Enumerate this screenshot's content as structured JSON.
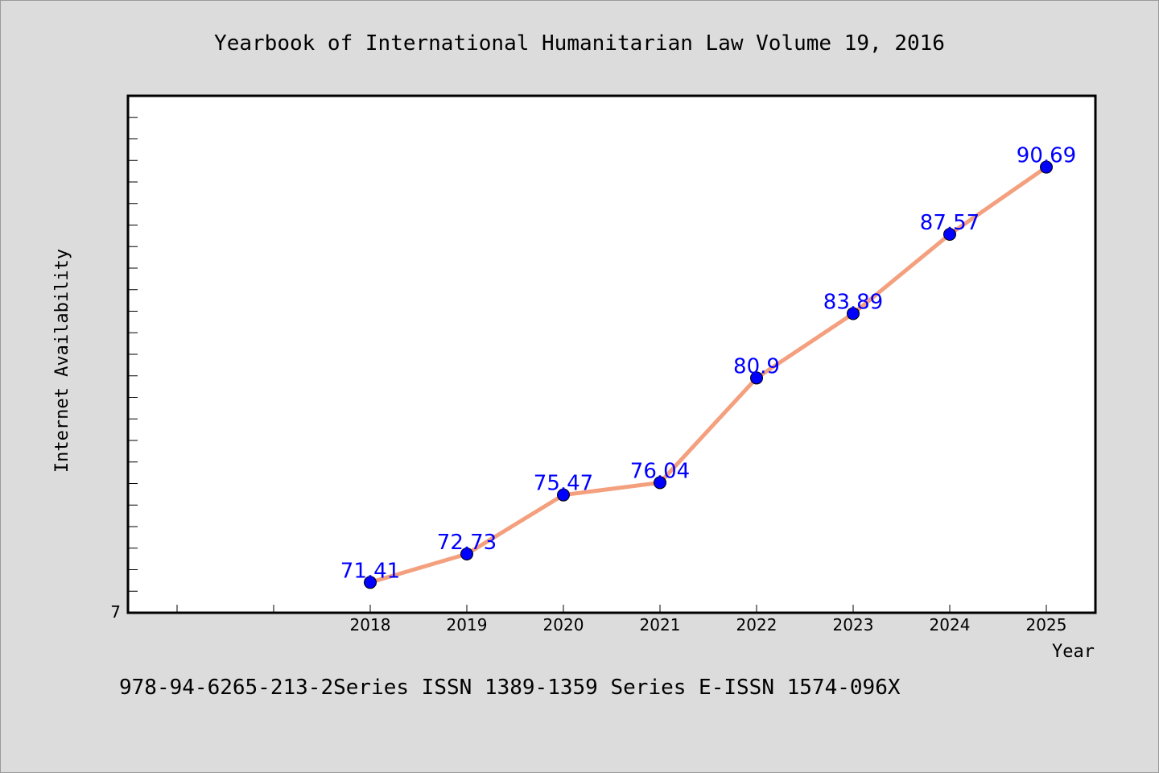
{
  "footer": "978-94-6265-213-2Series ISSN 1389-1359 Series E-ISSN 1574-096X",
  "chart_data": {
    "type": "line",
    "title": "Yearbook of International Humanitarian Law Volume 19, 2016",
    "xlabel": "Year",
    "ylabel": "Internet Availability",
    "x": [
      "2018",
      "2019",
      "2020",
      "2021",
      "2022",
      "2023",
      "2024",
      "2025"
    ],
    "series": [
      {
        "values": [
          71.41,
          72.73,
          75.47,
          76.04,
          80.9,
          83.89,
          87.57,
          90.69
        ]
      }
    ],
    "data_labels": [
      "71.41",
      "72.73",
      "75.47",
      "76.04",
      "80.9",
      "83.89",
      "87.57",
      "90.69"
    ],
    "y_tick_label": "7",
    "ylim": [
      70,
      94
    ],
    "grid": false,
    "legend": "none",
    "line_color": "#f4a07e",
    "marker_color": "#0000ff",
    "label_color": "#0000ff"
  }
}
